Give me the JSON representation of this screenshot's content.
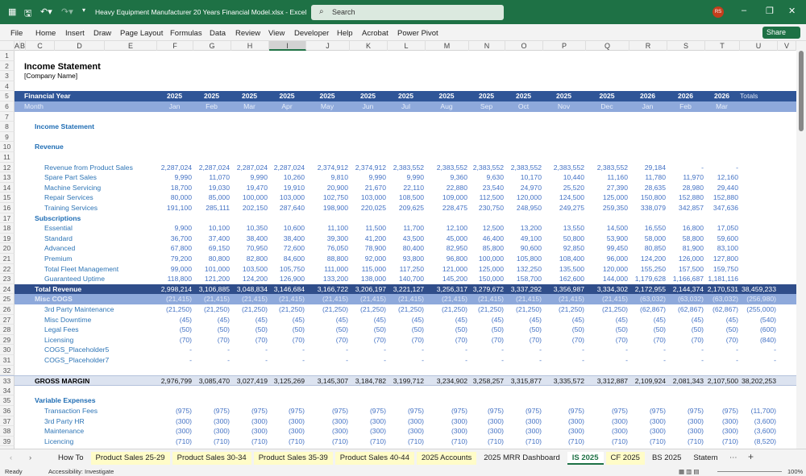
{
  "titlebar": {
    "file_title": "Heavy Equipment Manufacturer 20 Years Financial Model.xlsx  -  Excel",
    "search_placeholder": "Search",
    "user_initials": "RS"
  },
  "menu": [
    "File",
    "Home",
    "Insert",
    "Draw",
    "Page Layout",
    "Formulas",
    "Data",
    "Review",
    "View",
    "Developer",
    "Help",
    "Acrobat",
    "Power Pivot"
  ],
  "share_label": "Share",
  "columns": [
    "A",
    "B",
    "C",
    "D",
    "E",
    "F",
    "G",
    "H",
    "I",
    "J",
    "K",
    "L",
    "M",
    "N",
    "O",
    "P",
    "Q",
    "R",
    "S",
    "T",
    "U",
    "V"
  ],
  "selected_column": "I",
  "colors": {
    "excel_green": "#1e7145",
    "header_navy": "#2f5597",
    "month_blue": "#8ea9db",
    "total_navy": "#2f4d8a",
    "gross_margin_bg": "#dce3f0",
    "label_blue": "#2e75b6"
  },
  "rows": [
    {
      "num": "1",
      "kind": "blank"
    },
    {
      "num": "2",
      "kind": "title",
      "label": "Income Statement"
    },
    {
      "num": "3",
      "kind": "sub",
      "label": "[Company Name]"
    },
    {
      "num": "4",
      "kind": "blank"
    },
    {
      "num": "5",
      "kind": "fy",
      "label": "Financial Year",
      "values": [
        "2025",
        "2025",
        "2025",
        "2025",
        "2025",
        "2025",
        "2025",
        "2025",
        "2025",
        "2025",
        "2025",
        "2025",
        "2026",
        "2026",
        "2026"
      ],
      "total": "Totals"
    },
    {
      "num": "6",
      "kind": "mo",
      "label": "Month",
      "values": [
        "Jan",
        "Feb",
        "Mar",
        "Apr",
        "May",
        "Jun",
        "Jul",
        "Aug",
        "Sep",
        "Oct",
        "Nov",
        "Dec",
        "Jan",
        "Feb",
        "Mar"
      ]
    },
    {
      "num": "7",
      "kind": "blank"
    },
    {
      "num": "8",
      "kind": "sec",
      "label": "Income Statement"
    },
    {
      "num": "9",
      "kind": "blank"
    },
    {
      "num": "10",
      "kind": "sec",
      "label": "Revenue"
    },
    {
      "num": "11",
      "kind": "blank"
    },
    {
      "num": "12",
      "kind": "item",
      "label": "Revenue from Product Sales",
      "values": [
        "2,287,024",
        "2,287,024",
        "2,287,024",
        "2,287,024",
        "2,374,912",
        "2,374,912",
        "2,383,552",
        "2,383,552",
        "2,383,552",
        "2,383,552",
        "2,383,552",
        "2,383,552",
        "29,184",
        "-",
        "-"
      ]
    },
    {
      "num": "13",
      "kind": "item",
      "label": "Spare Part Sales",
      "values": [
        "9,990",
        "11,070",
        "9,990",
        "10,260",
        "9,810",
        "9,990",
        "9,990",
        "9,360",
        "9,630",
        "10,170",
        "10,440",
        "11,160",
        "11,780",
        "11,970",
        "12,160"
      ]
    },
    {
      "num": "14",
      "kind": "item",
      "label": "Machine Servicing",
      "values": [
        "18,700",
        "19,030",
        "19,470",
        "19,910",
        "20,900",
        "21,670",
        "22,110",
        "22,880",
        "23,540",
        "24,970",
        "25,520",
        "27,390",
        "28,635",
        "28,980",
        "29,440"
      ]
    },
    {
      "num": "15",
      "kind": "item",
      "label": "Repair Services",
      "values": [
        "80,000",
        "85,000",
        "100,000",
        "103,000",
        "102,750",
        "103,000",
        "108,500",
        "109,000",
        "112,500",
        "120,000",
        "124,500",
        "125,000",
        "150,800",
        "152,880",
        "152,880"
      ]
    },
    {
      "num": "16",
      "kind": "item",
      "label": "Training Services",
      "values": [
        "191,100",
        "285,111",
        "202,150",
        "287,640",
        "198,900",
        "220,025",
        "209,625",
        "228,475",
        "230,750",
        "248,950",
        "249,275",
        "259,350",
        "338,079",
        "342,857",
        "347,636"
      ]
    },
    {
      "num": "17",
      "kind": "sec",
      "label": "Subscriptions"
    },
    {
      "num": "18",
      "kind": "item",
      "label": "Essential",
      "values": [
        "9,900",
        "10,100",
        "10,350",
        "10,600",
        "11,100",
        "11,500",
        "11,700",
        "12,100",
        "12,500",
        "13,200",
        "13,550",
        "14,500",
        "16,550",
        "16,800",
        "17,050"
      ]
    },
    {
      "num": "19",
      "kind": "item",
      "label": "Standard",
      "values": [
        "36,700",
        "37,400",
        "38,400",
        "38,400",
        "39,300",
        "41,200",
        "43,500",
        "45,000",
        "46,400",
        "49,100",
        "50,800",
        "53,900",
        "58,000",
        "58,800",
        "59,600"
      ]
    },
    {
      "num": "20",
      "kind": "item",
      "label": "Advanced",
      "values": [
        "67,800",
        "69,150",
        "70,950",
        "72,600",
        "76,050",
        "78,900",
        "80,400",
        "82,950",
        "85,800",
        "90,600",
        "92,850",
        "99,450",
        "80,850",
        "81,900",
        "83,100"
      ]
    },
    {
      "num": "21",
      "kind": "item",
      "label": "Premium",
      "values": [
        "79,200",
        "80,800",
        "82,800",
        "84,600",
        "88,800",
        "92,000",
        "93,800",
        "96,800",
        "100,000",
        "105,800",
        "108,400",
        "96,000",
        "124,200",
        "126,000",
        "127,800"
      ]
    },
    {
      "num": "22",
      "kind": "item",
      "label": "Total Fleet Management",
      "values": [
        "99,000",
        "101,000",
        "103,500",
        "105,750",
        "111,000",
        "115,000",
        "117,250",
        "121,000",
        "125,000",
        "132,250",
        "135,500",
        "120,000",
        "155,250",
        "157,500",
        "159,750"
      ]
    },
    {
      "num": "23",
      "kind": "item",
      "label": "Guaranteed Uptime",
      "values": [
        "118,800",
        "121,200",
        "124,200",
        "126,900",
        "133,200",
        "138,000",
        "140,700",
        "145,200",
        "150,000",
        "158,700",
        "162,600",
        "144,000",
        "1,179,628",
        "1,166,687",
        "1,181,116"
      ]
    },
    {
      "num": "24",
      "kind": "tot",
      "label": "Total Revenue",
      "values": [
        "2,998,214",
        "3,106,885",
        "3,048,834",
        "3,146,684",
        "3,166,722",
        "3,206,197",
        "3,221,127",
        "3,256,317",
        "3,279,672",
        "3,337,292",
        "3,356,987",
        "3,334,302",
        "2,172,955",
        "2,144,374",
        "2,170,531"
      ],
      "total": "38,459,233"
    },
    {
      "num": "25",
      "kind": "cogs",
      "label": "Misc COGS",
      "values": [
        "(21,415)",
        "(21,415)",
        "(21,415)",
        "(21,415)",
        "(21,415)",
        "(21,415)",
        "(21,415)",
        "(21,415)",
        "(21,415)",
        "(21,415)",
        "(21,415)",
        "(21,415)",
        "(63,032)",
        "(63,032)",
        "(63,032)"
      ],
      "total": "(256,980)"
    },
    {
      "num": "26",
      "kind": "item",
      "label": "3rd Party Maintenance",
      "values": [
        "(21,250)",
        "(21,250)",
        "(21,250)",
        "(21,250)",
        "(21,250)",
        "(21,250)",
        "(21,250)",
        "(21,250)",
        "(21,250)",
        "(21,250)",
        "(21,250)",
        "(21,250)",
        "(62,867)",
        "(62,867)",
        "(62,867)"
      ],
      "total": "(255,000)"
    },
    {
      "num": "27",
      "kind": "item",
      "label": "Misc Downtime",
      "values": [
        "(45)",
        "(45)",
        "(45)",
        "(45)",
        "(45)",
        "(45)",
        "(45)",
        "(45)",
        "(45)",
        "(45)",
        "(45)",
        "(45)",
        "(45)",
        "(45)",
        "(45)"
      ],
      "total": "(540)"
    },
    {
      "num": "28",
      "kind": "item",
      "label": "Legal Fees",
      "values": [
        "(50)",
        "(50)",
        "(50)",
        "(50)",
        "(50)",
        "(50)",
        "(50)",
        "(50)",
        "(50)",
        "(50)",
        "(50)",
        "(50)",
        "(50)",
        "(50)",
        "(50)"
      ],
      "total": "(600)"
    },
    {
      "num": "29",
      "kind": "item",
      "label": "Licensing",
      "values": [
        "(70)",
        "(70)",
        "(70)",
        "(70)",
        "(70)",
        "(70)",
        "(70)",
        "(70)",
        "(70)",
        "(70)",
        "(70)",
        "(70)",
        "(70)",
        "(70)",
        "(70)"
      ],
      "total": "(840)"
    },
    {
      "num": "30",
      "kind": "item",
      "label": "COGS_Placeholder5",
      "values": [
        "-",
        "-",
        "-",
        "-",
        "-",
        "-",
        "-",
        "-",
        "-",
        "-",
        "-",
        "-",
        "-",
        "-",
        "-"
      ],
      "total": "-"
    },
    {
      "num": "31",
      "kind": "item",
      "label": "COGS_Placeholder7",
      "values": [
        "-",
        "-",
        "-",
        "-",
        "-",
        "-",
        "-",
        "-",
        "-",
        "-",
        "-",
        "-",
        "-",
        "-",
        "-"
      ],
      "total": "-"
    },
    {
      "num": "32",
      "kind": "blank"
    },
    {
      "num": "33",
      "kind": "gm",
      "label": "GROSS MARGIN",
      "values": [
        "2,976,799",
        "3,085,470",
        "3,027,419",
        "3,125,269",
        "3,145,307",
        "3,184,782",
        "3,199,712",
        "3,234,902",
        "3,258,257",
        "3,315,877",
        "3,335,572",
        "3,312,887",
        "2,109,924",
        "2,081,343",
        "2,107,500"
      ],
      "total": "38,202,253"
    },
    {
      "num": "34",
      "kind": "blank"
    },
    {
      "num": "35",
      "kind": "sec",
      "label": "Variable Expenses"
    },
    {
      "num": "36",
      "kind": "item",
      "label": "Transaction Fees",
      "values": [
        "(975)",
        "(975)",
        "(975)",
        "(975)",
        "(975)",
        "(975)",
        "(975)",
        "(975)",
        "(975)",
        "(975)",
        "(975)",
        "(975)",
        "(975)",
        "(975)",
        "(975)"
      ],
      "total": "(11,700)"
    },
    {
      "num": "37",
      "kind": "item",
      "label": "3rd Party HR",
      "values": [
        "(300)",
        "(300)",
        "(300)",
        "(300)",
        "(300)",
        "(300)",
        "(300)",
        "(300)",
        "(300)",
        "(300)",
        "(300)",
        "(300)",
        "(300)",
        "(300)",
        "(300)"
      ],
      "total": "(3,600)"
    },
    {
      "num": "38",
      "kind": "item",
      "label": "Maintenance",
      "values": [
        "(300)",
        "(300)",
        "(300)",
        "(300)",
        "(300)",
        "(300)",
        "(300)",
        "(300)",
        "(300)",
        "(300)",
        "(300)",
        "(300)",
        "(300)",
        "(300)",
        "(300)"
      ],
      "total": "(3,600)"
    },
    {
      "num": "39",
      "kind": "item",
      "label": "Licencing",
      "values": [
        "(710)",
        "(710)",
        "(710)",
        "(710)",
        "(710)",
        "(710)",
        "(710)",
        "(710)",
        "(710)",
        "(710)",
        "(710)",
        "(710)",
        "(710)",
        "(710)",
        "(710)"
      ],
      "total": "(8,520)"
    }
  ],
  "tabs": [
    {
      "label": "How To",
      "style": "plain"
    },
    {
      "label": "Product Sales 25-29",
      "style": "y"
    },
    {
      "label": "Product Sales 30-34",
      "style": "y"
    },
    {
      "label": "Product Sales 35-39",
      "style": "y"
    },
    {
      "label": "Product Sales 40-44",
      "style": "y"
    },
    {
      "label": "2025 Accounts",
      "style": "y"
    },
    {
      "label": "2025 MRR Dashboard",
      "style": "plain"
    },
    {
      "label": "IS 2025",
      "style": "act"
    },
    {
      "label": "CF 2025",
      "style": "y"
    },
    {
      "label": "BS 2025",
      "style": "plain"
    },
    {
      "label": "Statem",
      "style": "plain"
    }
  ],
  "status": {
    "ready": "Ready",
    "accessibility": "Accessibility: Investigate",
    "zoom": "100%"
  }
}
